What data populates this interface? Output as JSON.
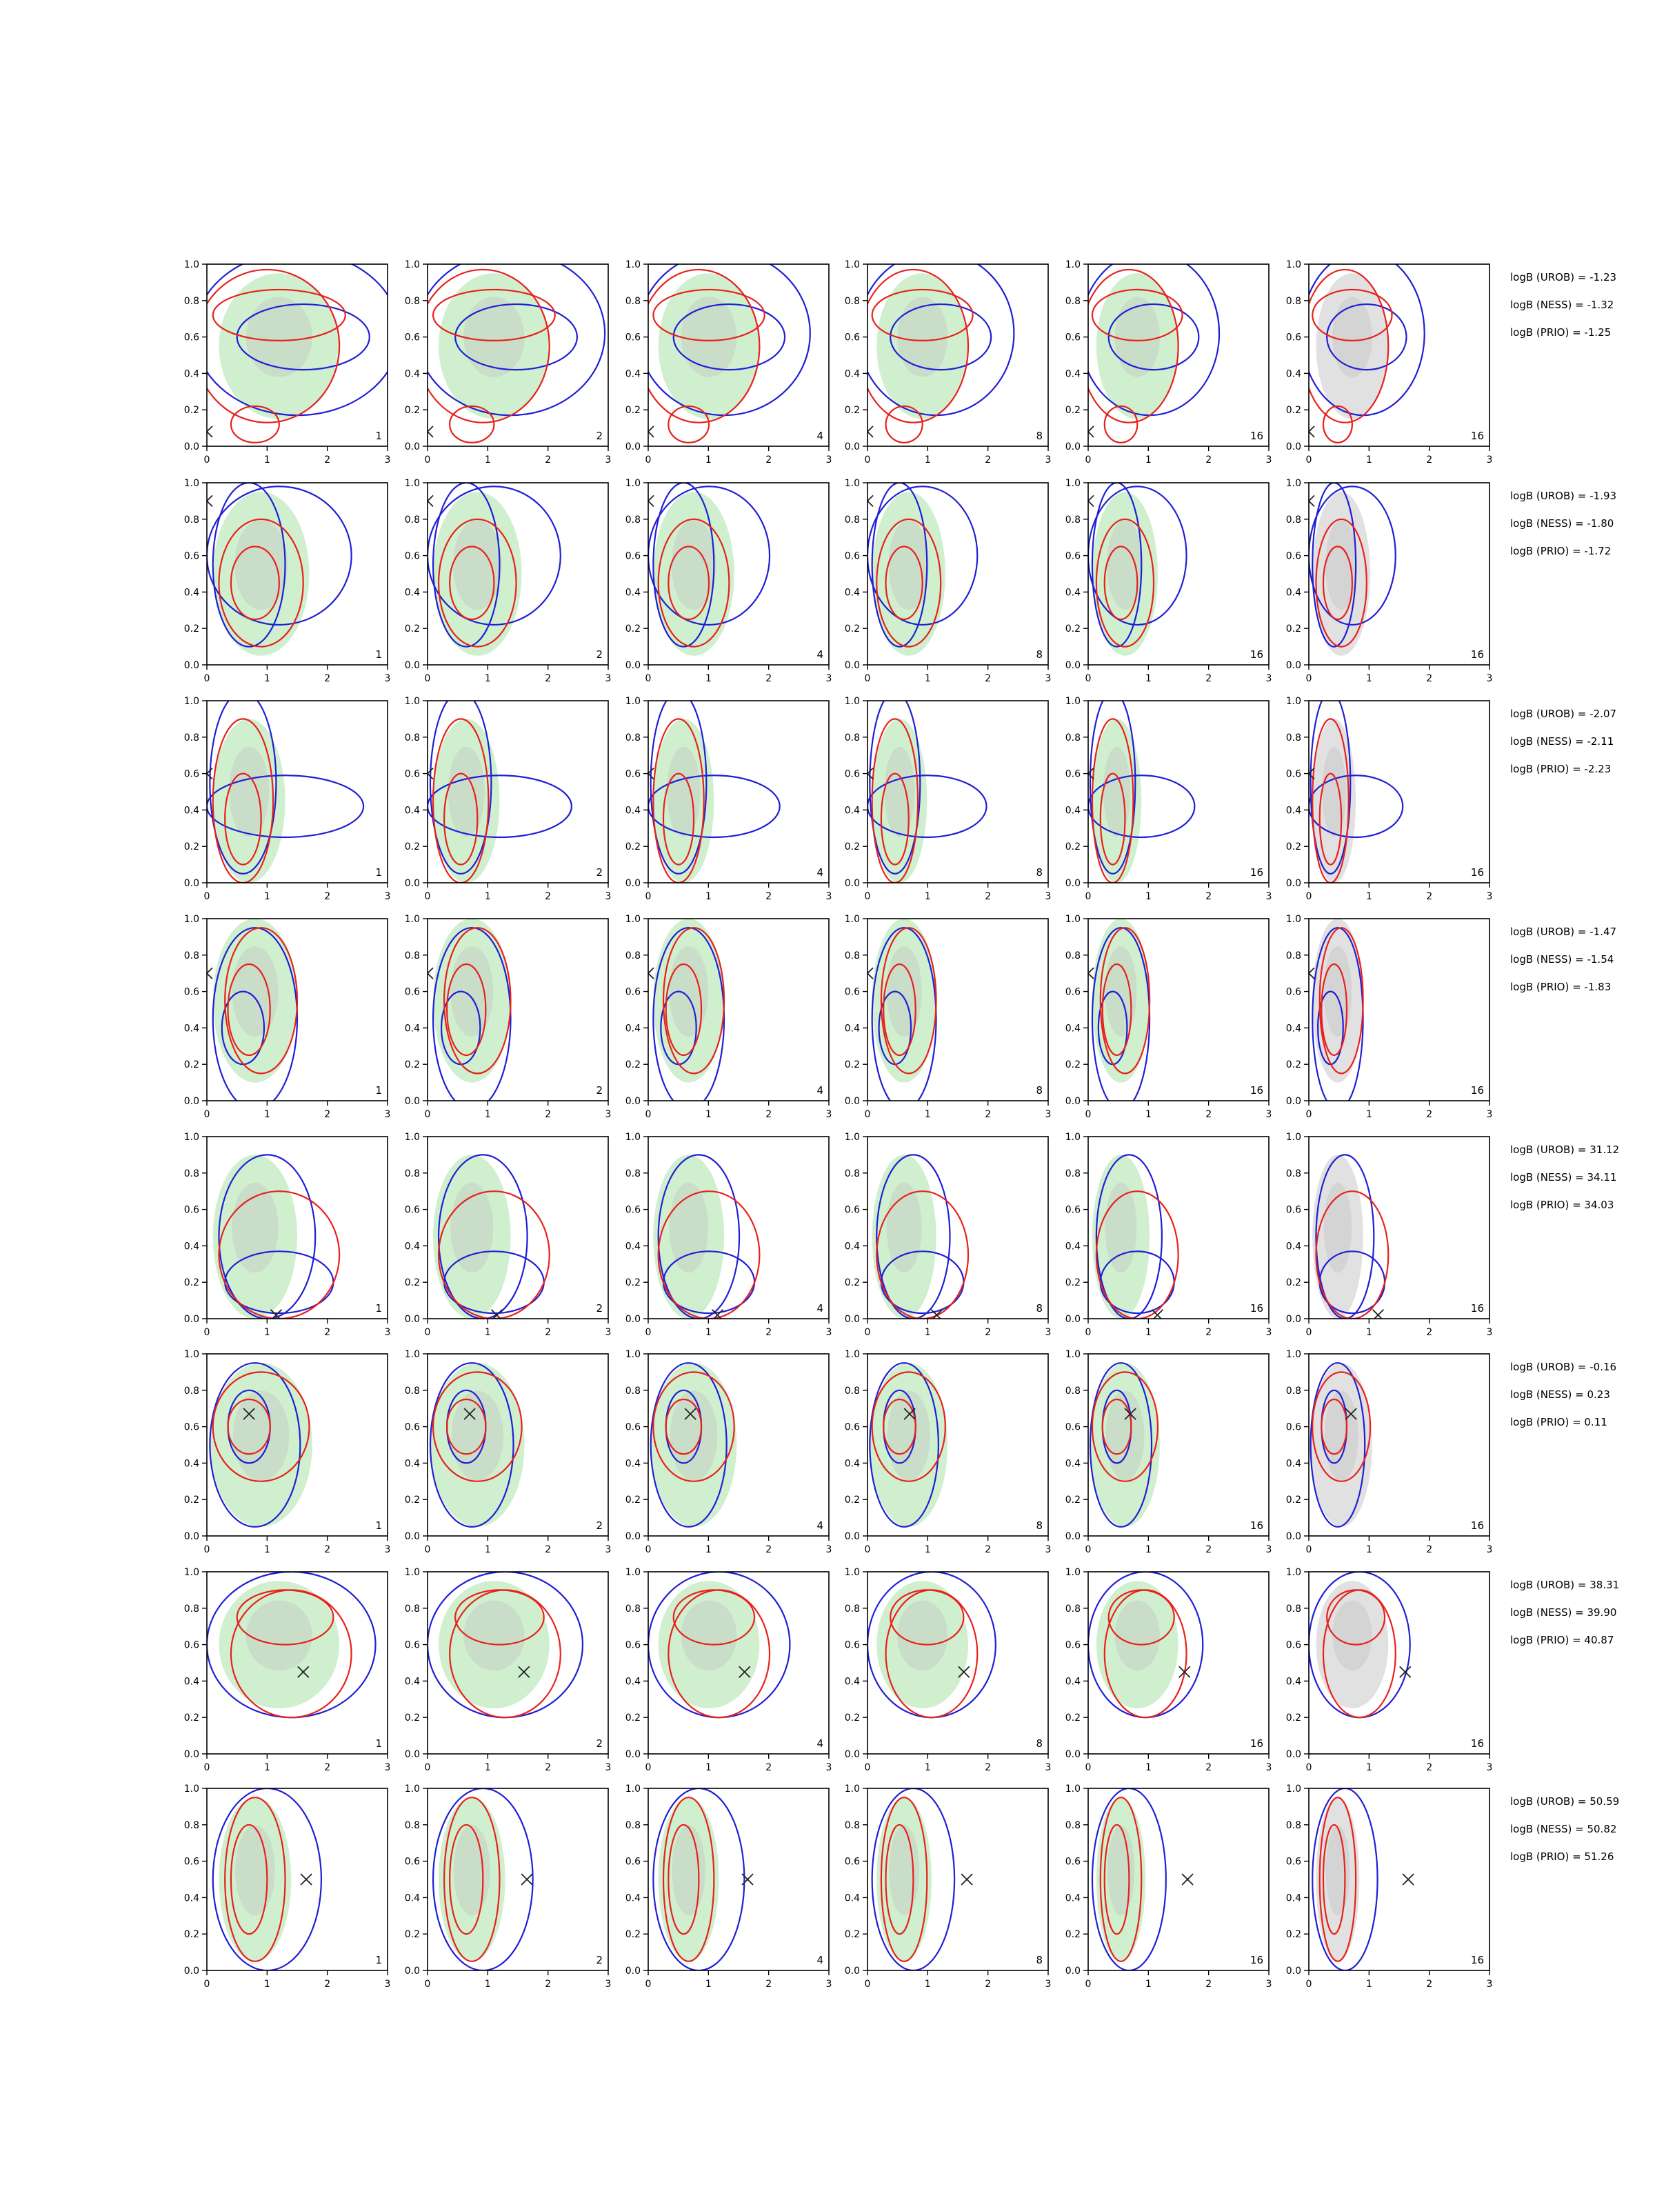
{
  "chart_data": {
    "type": "contour",
    "layout": {
      "rows": 8,
      "cols": 6
    },
    "xlim": [
      0,
      3
    ],
    "ylim": [
      0,
      1
    ],
    "x_ticks": [
      "0",
      "1",
      "2",
      "3"
    ],
    "y_ticks": [
      "0.0",
      "0.2",
      "0.4",
      "0.6",
      "0.8",
      "1.0"
    ],
    "column_labels": [
      "1",
      "2",
      "4",
      "8",
      "16",
      "16"
    ],
    "series_colors": {
      "shade_green": "#bfeabf",
      "shade_grey": "#bdbdbd",
      "contour_red": "#e8211b",
      "contour_blue": "#1f1fd6",
      "marker": "#222222"
    },
    "rows": [
      {
        "marker": [
          0.0,
          0.08
        ],
        "evidence": [
          "logB (UROB) = -1.23",
          "logB (NESS) = -1.32",
          "logB (PRIO) = -1.25"
        ],
        "red": [
          {
            "cx": 1.2,
            "cy": 0.72,
            "rx": 1.1,
            "ry": 0.14
          },
          {
            "cx": 1.0,
            "cy": 0.55,
            "rx": 1.2,
            "ry": 0.42
          },
          {
            "cx": 0.8,
            "cy": 0.12,
            "rx": 0.4,
            "ry": 0.1
          }
        ],
        "blue": [
          {
            "cx": 1.5,
            "cy": 0.62,
            "rx": 1.7,
            "ry": 0.45
          },
          {
            "cx": 1.6,
            "cy": 0.6,
            "rx": 1.1,
            "ry": 0.18
          }
        ],
        "shade": [
          {
            "cx": 1.2,
            "cy": 0.55,
            "rx": 1.0,
            "ry": 0.4
          }
        ],
        "shade_kind": "green"
      },
      {
        "marker": [
          0.0,
          0.9
        ],
        "evidence": [
          "logB (UROB) = -1.93",
          "logB (NESS) = -1.80",
          "logB (PRIO) = -1.72"
        ],
        "red": [
          {
            "cx": 0.9,
            "cy": 0.45,
            "rx": 0.7,
            "ry": 0.35
          },
          {
            "cx": 0.8,
            "cy": 0.45,
            "rx": 0.4,
            "ry": 0.2
          }
        ],
        "blue": [
          {
            "cx": 1.2,
            "cy": 0.6,
            "rx": 1.2,
            "ry": 0.38
          },
          {
            "cx": 0.7,
            "cy": 0.55,
            "rx": 0.6,
            "ry": 0.45
          }
        ],
        "shade": [
          {
            "cx": 0.9,
            "cy": 0.5,
            "rx": 0.8,
            "ry": 0.45
          }
        ],
        "shade_kind": "green"
      },
      {
        "marker": [
          0.0,
          0.6
        ],
        "evidence": [
          "logB (UROB) = -2.07",
          "logB (NESS) = -2.11",
          "logB (PRIO) = -2.23"
        ],
        "red": [
          {
            "cx": 0.6,
            "cy": 0.45,
            "rx": 0.5,
            "ry": 0.45
          },
          {
            "cx": 0.6,
            "cy": 0.35,
            "rx": 0.3,
            "ry": 0.25
          }
        ],
        "blue": [
          {
            "cx": 1.3,
            "cy": 0.42,
            "rx": 1.3,
            "ry": 0.17
          },
          {
            "cx": 0.6,
            "cy": 0.55,
            "rx": 0.55,
            "ry": 0.5
          }
        ],
        "shade": [
          {
            "cx": 0.7,
            "cy": 0.45,
            "rx": 0.6,
            "ry": 0.45
          }
        ],
        "shade_kind": "green"
      },
      {
        "marker": [
          0.0,
          0.7
        ],
        "evidence": [
          "logB (UROB) = -1.47",
          "logB (NESS) = -1.54",
          "logB (PRIO) = -1.83"
        ],
        "red": [
          {
            "cx": 0.9,
            "cy": 0.55,
            "rx": 0.6,
            "ry": 0.4
          },
          {
            "cx": 0.7,
            "cy": 0.5,
            "rx": 0.35,
            "ry": 0.25
          }
        ],
        "blue": [
          {
            "cx": 0.8,
            "cy": 0.45,
            "rx": 0.7,
            "ry": 0.5
          },
          {
            "cx": 0.6,
            "cy": 0.4,
            "rx": 0.35,
            "ry": 0.2
          }
        ],
        "shade": [
          {
            "cx": 0.8,
            "cy": 0.55,
            "rx": 0.7,
            "ry": 0.45
          }
        ],
        "shade_kind": "green"
      },
      {
        "marker": [
          1.15,
          0.02
        ],
        "evidence": [
          "logB (UROB) = 31.12",
          "logB (NESS) = 34.11",
          "logB (PRIO) = 34.03"
        ],
        "red": [
          {
            "cx": 1.2,
            "cy": 0.35,
            "rx": 1.0,
            "ry": 0.35
          }
        ],
        "blue": [
          {
            "cx": 1.0,
            "cy": 0.45,
            "rx": 0.8,
            "ry": 0.45
          },
          {
            "cx": 1.2,
            "cy": 0.2,
            "rx": 0.9,
            "ry": 0.17
          }
        ],
        "shade": [
          {
            "cx": 0.8,
            "cy": 0.45,
            "rx": 0.7,
            "ry": 0.45
          }
        ],
        "shade_kind": "green"
      },
      {
        "marker": [
          0.7,
          0.67
        ],
        "evidence": [
          "logB (UROB) = -0.16",
          "logB (NESS) = 0.23",
          "logB (PRIO) = 0.11"
        ],
        "red": [
          {
            "cx": 0.9,
            "cy": 0.6,
            "rx": 0.8,
            "ry": 0.3
          },
          {
            "cx": 0.7,
            "cy": 0.6,
            "rx": 0.35,
            "ry": 0.15
          }
        ],
        "blue": [
          {
            "cx": 0.8,
            "cy": 0.5,
            "rx": 0.75,
            "ry": 0.45
          },
          {
            "cx": 0.7,
            "cy": 0.6,
            "rx": 0.35,
            "ry": 0.2
          }
        ],
        "shade": [
          {
            "cx": 0.9,
            "cy": 0.5,
            "rx": 0.85,
            "ry": 0.45
          }
        ],
        "shade_kind": "green"
      },
      {
        "marker": [
          1.6,
          0.45
        ],
        "evidence": [
          "logB (UROB) = 38.31",
          "logB (NESS) = 39.90",
          "logB (PRIO) = 40.87"
        ],
        "red": [
          {
            "cx": 1.3,
            "cy": 0.75,
            "rx": 0.8,
            "ry": 0.15
          },
          {
            "cx": 1.4,
            "cy": 0.55,
            "rx": 1.0,
            "ry": 0.35
          }
        ],
        "blue": [
          {
            "cx": 1.4,
            "cy": 0.6,
            "rx": 1.4,
            "ry": 0.4
          }
        ],
        "shade": [
          {
            "cx": 1.2,
            "cy": 0.6,
            "rx": 1.0,
            "ry": 0.35
          }
        ],
        "shade_kind": "green"
      },
      {
        "marker": [
          1.65,
          0.5
        ],
        "evidence": [
          "logB (UROB) = 50.59",
          "logB (NESS) = 50.82",
          "logB (PRIO) = 51.26"
        ],
        "red": [
          {
            "cx": 0.8,
            "cy": 0.5,
            "rx": 0.5,
            "ry": 0.45
          },
          {
            "cx": 0.7,
            "cy": 0.5,
            "rx": 0.3,
            "ry": 0.3
          }
        ],
        "blue": [
          {
            "cx": 1.0,
            "cy": 0.5,
            "rx": 0.9,
            "ry": 0.5
          }
        ],
        "shade": [
          {
            "cx": 0.8,
            "cy": 0.5,
            "rx": 0.6,
            "ry": 0.45
          }
        ],
        "shade_kind": "green"
      }
    ]
  }
}
